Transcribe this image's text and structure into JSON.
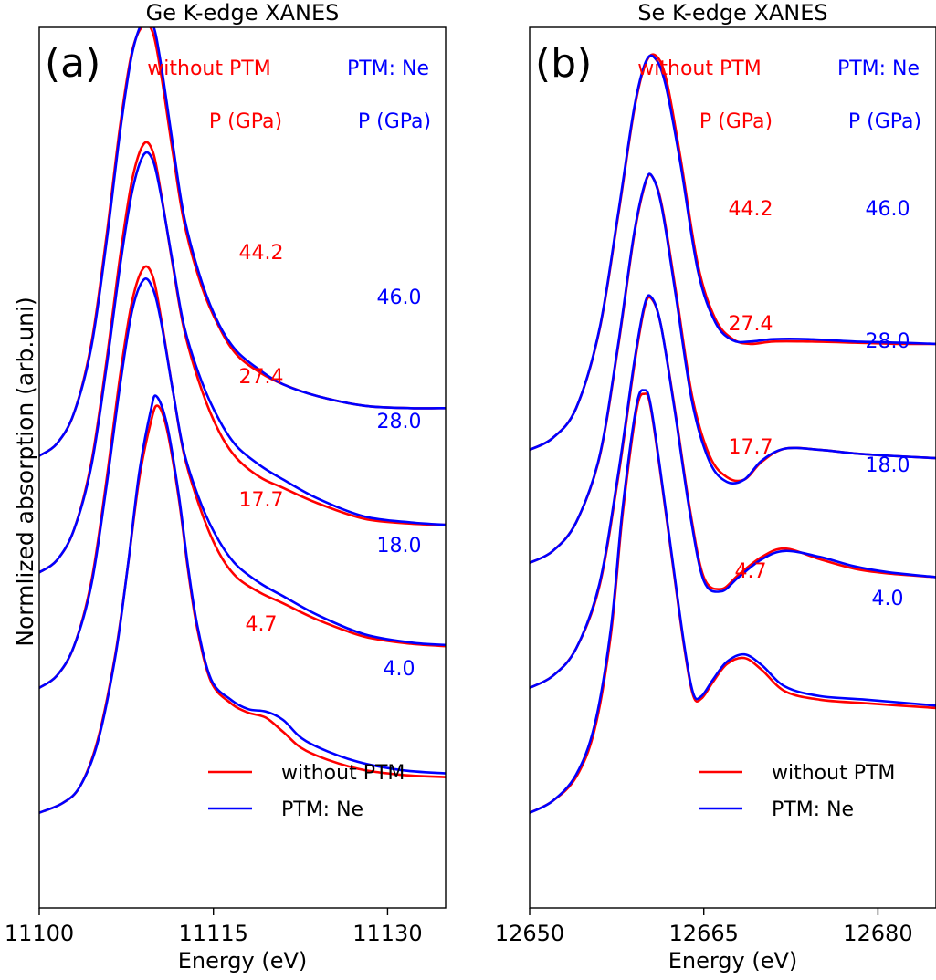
{
  "figure": {
    "ylabel": "Normlized absorption (arb.uni)",
    "colors": {
      "without_ptm": "#ff0000",
      "ptm_ne": "#0000ff",
      "axis": "#000000"
    }
  },
  "chart_data": [
    {
      "type": "line",
      "panel_label": "(a)",
      "title": "Ge K-edge XANES",
      "xlabel": "Energy (eV)",
      "ylabel": "Normlized absorption (arb.uni)",
      "xlim": [
        11100,
        11135
      ],
      "ylim": [
        -0.8,
        6.6
      ],
      "xticks": [
        11100,
        11115,
        11130
      ],
      "xtick_labels": [
        "11100",
        "11115",
        "11130"
      ],
      "yticks": [],
      "header": {
        "left_title": "without PTM",
        "right_title": "PTM: Ne",
        "left_unit": "P (GPa)",
        "right_unit": "P (GPa)"
      },
      "pressure_labels_without_ptm": [
        "44.2",
        "27.4",
        "17.7",
        "4.7"
      ],
      "pressure_labels_ptm_ne": [
        "46.0",
        "28.0",
        "18.0",
        "4.0"
      ],
      "legend": {
        "position": "lower-right",
        "entries": [
          "without PTM",
          "PTM: Ne"
        ]
      },
      "series": [
        {
          "name": "without PTM",
          "pressure_gpa": 4.7,
          "x": [
            11100,
            11102,
            11103.5,
            11105,
            11106.5,
            11107.6,
            11108.6,
            11109.6,
            11110.2,
            11111,
            11112,
            11112.8,
            11113.6,
            11114.8,
            11116.5,
            11118,
            11119.5,
            11121,
            11123,
            11127,
            11131,
            11135
          ],
          "y": [
            0.0,
            0.08,
            0.22,
            0.6,
            1.3,
            2.05,
            2.8,
            3.28,
            3.42,
            3.22,
            2.65,
            2.05,
            1.55,
            1.1,
            0.92,
            0.84,
            0.8,
            0.68,
            0.52,
            0.38,
            0.32,
            0.3
          ]
        },
        {
          "name": "PTM: Ne",
          "pressure_gpa": 4.0,
          "x": [
            11100,
            11102,
            11103.5,
            11105,
            11106.5,
            11107.6,
            11108.6,
            11109.6,
            11110.1,
            11111,
            11112,
            11112.8,
            11113.6,
            11114.8,
            11116.5,
            11118,
            11119.5,
            11121,
            11123,
            11127,
            11131,
            11135
          ],
          "y": [
            0.0,
            0.08,
            0.22,
            0.58,
            1.28,
            2.05,
            2.85,
            3.38,
            3.5,
            3.26,
            2.68,
            2.08,
            1.58,
            1.12,
            0.95,
            0.87,
            0.85,
            0.78,
            0.6,
            0.44,
            0.36,
            0.33
          ]
        },
        {
          "name": "without PTM",
          "pressure_gpa": 17.7,
          "x": [
            11100,
            11101.5,
            11103,
            11104.5,
            11105.8,
            11107,
            11108,
            11109,
            11109.8,
            11110.5,
            11111.5,
            11112.5,
            11114,
            11115.5,
            11117,
            11119,
            11121,
            11124,
            11128,
            11132,
            11135
          ],
          "y": [
            1.05,
            1.15,
            1.4,
            1.95,
            2.8,
            3.7,
            4.3,
            4.58,
            4.5,
            4.15,
            3.55,
            3.0,
            2.52,
            2.18,
            1.98,
            1.85,
            1.76,
            1.62,
            1.48,
            1.42,
            1.4
          ]
        },
        {
          "name": "PTM: Ne",
          "pressure_gpa": 18.0,
          "x": [
            11100,
            11101.5,
            11103,
            11104.5,
            11105.8,
            11107,
            11108,
            11109,
            11109.8,
            11110.5,
            11111.5,
            11112.5,
            11114,
            11115.5,
            11117,
            11119,
            11121,
            11124,
            11128,
            11132,
            11135
          ],
          "y": [
            1.05,
            1.15,
            1.4,
            1.92,
            2.75,
            3.62,
            4.22,
            4.48,
            4.4,
            4.12,
            3.55,
            3.02,
            2.58,
            2.28,
            2.08,
            1.93,
            1.82,
            1.66,
            1.5,
            1.43,
            1.41
          ]
        },
        {
          "name": "without PTM",
          "pressure_gpa": 27.4,
          "x": [
            11100,
            11101.5,
            11103,
            11104.5,
            11105.8,
            11107,
            11108,
            11109,
            11109.8,
            11110.5,
            11111.5,
            11112.5,
            11114,
            11115.5,
            11117,
            11119,
            11121,
            11124,
            11128,
            11132,
            11135
          ],
          "y": [
            2.02,
            2.12,
            2.38,
            2.95,
            3.8,
            4.7,
            5.32,
            5.62,
            5.55,
            5.2,
            4.6,
            4.05,
            3.55,
            3.2,
            2.98,
            2.82,
            2.73,
            2.6,
            2.47,
            2.43,
            2.42
          ]
        },
        {
          "name": "PTM: Ne",
          "pressure_gpa": 28.0,
          "x": [
            11100,
            11101.5,
            11103,
            11104.5,
            11105.8,
            11107,
            11108,
            11109,
            11109.8,
            11110.5,
            11111.5,
            11112.5,
            11114,
            11115.5,
            11117,
            11119,
            11121,
            11124,
            11128,
            11132,
            11135
          ],
          "y": [
            2.02,
            2.12,
            2.38,
            2.92,
            3.75,
            4.62,
            5.22,
            5.53,
            5.48,
            5.18,
            4.62,
            4.08,
            3.62,
            3.3,
            3.08,
            2.92,
            2.8,
            2.64,
            2.49,
            2.44,
            2.42
          ]
        },
        {
          "name": "without PTM",
          "pressure_gpa": 44.2,
          "x": [
            11100,
            11101.5,
            11103,
            11104.5,
            11105.8,
            11107,
            11108,
            11109,
            11109.8,
            11110.5,
            11111.5,
            11112.5,
            11114,
            11115.5,
            11117,
            11119,
            11121,
            11124,
            11128,
            11132,
            11135
          ],
          "y": [
            3.0,
            3.1,
            3.36,
            3.95,
            4.85,
            5.8,
            6.4,
            6.62,
            6.55,
            6.2,
            5.55,
            4.95,
            4.42,
            4.08,
            3.85,
            3.7,
            3.6,
            3.5,
            3.42,
            3.4,
            3.4
          ]
        },
        {
          "name": "PTM: Ne",
          "pressure_gpa": 46.0,
          "x": [
            11100,
            11101.5,
            11103,
            11104.5,
            11105.8,
            11107,
            11108,
            11109,
            11109.8,
            11110.5,
            11111.5,
            11112.5,
            11114,
            11115.5,
            11117,
            11119,
            11121,
            11124,
            11128,
            11132,
            11135
          ],
          "y": [
            3.0,
            3.1,
            3.36,
            3.92,
            4.8,
            5.75,
            6.38,
            6.66,
            6.62,
            6.28,
            5.62,
            5.0,
            4.46,
            4.1,
            3.88,
            3.72,
            3.6,
            3.5,
            3.42,
            3.4,
            3.4
          ]
        }
      ]
    },
    {
      "type": "line",
      "panel_label": "(b)",
      "title": "Se K-edge XANES",
      "xlabel": "Energy (eV)",
      "ylabel": "",
      "xlim": [
        12650,
        12685
      ],
      "ylim": [
        -0.8,
        6.6
      ],
      "xticks": [
        12650,
        12665,
        12680
      ],
      "xtick_labels": [
        "12650",
        "12665",
        "12680"
      ],
      "yticks": [],
      "header": {
        "left_title": "without PTM",
        "right_title": "PTM: Ne",
        "left_unit": "P (GPa)",
        "right_unit": "P (GPa)"
      },
      "pressure_labels_without_ptm": [
        "44.2",
        "27.4",
        "17.7",
        "4.7"
      ],
      "pressure_labels_ptm_ne": [
        "46.0",
        "28.0",
        "18.0",
        "4.0"
      ],
      "legend": {
        "position": "lower-right",
        "entries": [
          "without PTM",
          "PTM: Ne"
        ]
      },
      "series": [
        {
          "name": "without PTM",
          "pressure_gpa": 4.7,
          "x": [
            12650,
            12652,
            12654,
            12655.6,
            12657,
            12658,
            12659.2,
            12659.9,
            12660.4,
            12661.2,
            12662.2,
            12663.3,
            12664.1,
            12664.8,
            12665.8,
            12667,
            12668.5,
            12670,
            12672,
            12675,
            12679,
            12685
          ],
          "y": [
            0.0,
            0.1,
            0.3,
            0.7,
            1.5,
            2.5,
            3.38,
            3.52,
            3.42,
            2.9,
            2.18,
            1.4,
            0.98,
            0.96,
            1.1,
            1.25,
            1.3,
            1.2,
            1.02,
            0.95,
            0.92,
            0.88
          ]
        },
        {
          "name": "PTM: Ne",
          "pressure_gpa": 4.0,
          "x": [
            12650,
            12652,
            12654,
            12655.6,
            12657,
            12658,
            12659.2,
            12659.9,
            12660.4,
            12661.2,
            12662.2,
            12663.3,
            12664.1,
            12664.8,
            12665.8,
            12667,
            12668.5,
            12670,
            12672,
            12675,
            12679,
            12685
          ],
          "y": [
            0.0,
            0.1,
            0.32,
            0.74,
            1.55,
            2.55,
            3.42,
            3.55,
            3.44,
            2.92,
            2.2,
            1.42,
            1.0,
            0.98,
            1.12,
            1.27,
            1.33,
            1.24,
            1.06,
            0.98,
            0.95,
            0.9
          ]
        },
        {
          "name": "without PTM",
          "pressure_gpa": 17.7,
          "x": [
            12650,
            12652,
            12654,
            12656,
            12657.6,
            12659,
            12659.9,
            12660.5,
            12661.3,
            12662.5,
            12663.8,
            12665,
            12666.5,
            12668,
            12670,
            12672,
            12675,
            12678,
            12681,
            12685
          ],
          "y": [
            1.05,
            1.15,
            1.38,
            1.9,
            2.8,
            3.75,
            4.25,
            4.32,
            4.1,
            3.4,
            2.55,
            1.98,
            1.88,
            2.0,
            2.15,
            2.22,
            2.13,
            2.05,
            2.01,
            1.98
          ]
        },
        {
          "name": "PTM: Ne",
          "pressure_gpa": 18.0,
          "x": [
            12650,
            12652,
            12654,
            12656,
            12657.6,
            12659,
            12659.9,
            12660.5,
            12661.3,
            12662.5,
            12663.8,
            12665,
            12666.5,
            12668,
            12670,
            12672,
            12675,
            12678,
            12681,
            12685
          ],
          "y": [
            1.05,
            1.15,
            1.38,
            1.92,
            2.83,
            3.78,
            4.27,
            4.33,
            4.1,
            3.38,
            2.52,
            1.95,
            1.86,
            1.98,
            2.13,
            2.2,
            2.15,
            2.07,
            2.02,
            1.98
          ]
        },
        {
          "name": "without PTM",
          "pressure_gpa": 27.4,
          "x": [
            12650,
            12652,
            12654,
            12656,
            12657.6,
            12659,
            12660,
            12660.6,
            12661.4,
            12662.6,
            12664,
            12665.5,
            12667,
            12668.5,
            12670,
            12672,
            12675,
            12678,
            12681,
            12685
          ],
          "y": [
            2.1,
            2.2,
            2.44,
            2.98,
            3.9,
            4.85,
            5.3,
            5.34,
            5.1,
            4.38,
            3.5,
            3.0,
            2.82,
            2.8,
            2.95,
            3.06,
            3.05,
            3.02,
            3.0,
            2.98
          ]
        },
        {
          "name": "PTM: Ne",
          "pressure_gpa": 28.0,
          "x": [
            12650,
            12652,
            12654,
            12656,
            12657.6,
            12659,
            12660,
            12660.6,
            12661.4,
            12662.6,
            12664,
            12665.5,
            12667,
            12668.5,
            12670,
            12672,
            12675,
            12678,
            12681,
            12685
          ],
          "y": [
            2.1,
            2.2,
            2.44,
            2.99,
            3.92,
            4.87,
            5.31,
            5.34,
            5.08,
            4.34,
            3.45,
            2.95,
            2.78,
            2.8,
            2.96,
            3.06,
            3.05,
            3.02,
            3.0,
            2.98
          ]
        },
        {
          "name": "without PTM",
          "pressure_gpa": 44.2,
          "x": [
            12650,
            12652,
            12654,
            12656,
            12657.6,
            12659,
            12660,
            12660.9,
            12661.8,
            12663,
            12664.5,
            12666,
            12667.5,
            12669,
            12671,
            12674,
            12678,
            12682,
            12685
          ],
          "y": [
            3.05,
            3.15,
            3.4,
            4.05,
            5.0,
            5.9,
            6.3,
            6.36,
            6.15,
            5.5,
            4.6,
            4.15,
            3.98,
            3.94,
            3.96,
            3.96,
            3.95,
            3.94,
            3.94
          ]
        },
        {
          "name": "PTM: Ne",
          "pressure_gpa": 46.0,
          "x": [
            12650,
            12652,
            12654,
            12656,
            12657.6,
            12659,
            12660,
            12660.8,
            12661.7,
            12663,
            12664.5,
            12666,
            12667.5,
            12669,
            12671,
            12674,
            12678,
            12682,
            12685
          ],
          "y": [
            3.05,
            3.15,
            3.4,
            4.06,
            5.02,
            5.92,
            6.31,
            6.34,
            6.12,
            5.45,
            4.55,
            4.12,
            3.97,
            3.96,
            3.98,
            3.98,
            3.96,
            3.95,
            3.94
          ]
        }
      ]
    }
  ]
}
